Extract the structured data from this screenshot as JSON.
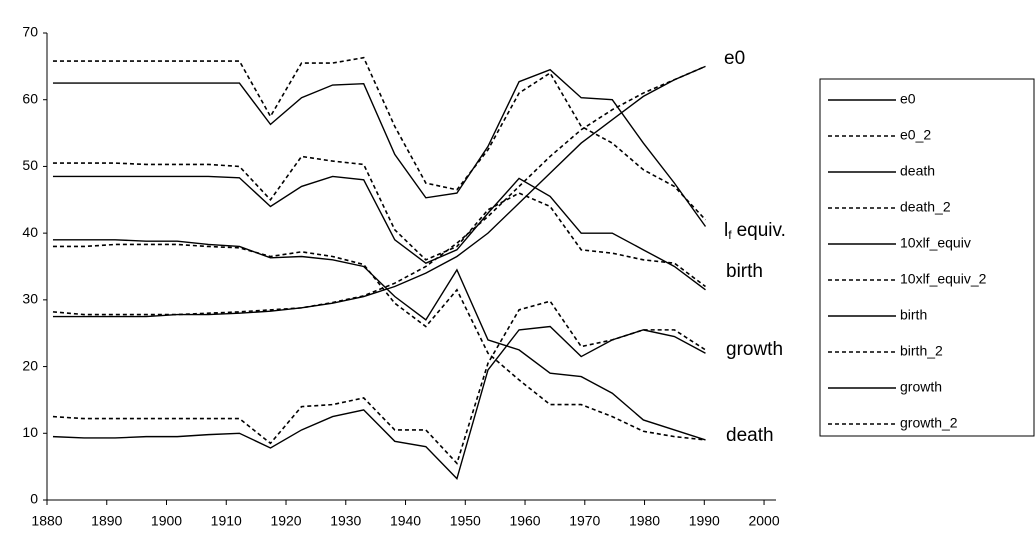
{
  "chart_data": {
    "type": "line",
    "x": [
      1881.0,
      1886.2,
      1891.4,
      1896.6,
      1901.8,
      1907.0,
      1912.2,
      1917.4,
      1922.6,
      1927.8,
      1933.0,
      1938.2,
      1943.4,
      1948.6,
      1953.8,
      1959.0,
      1964.2,
      1969.4,
      1974.6,
      1979.8,
      1985.0,
      1990.2
    ],
    "xlim": [
      1880,
      2002
    ],
    "xticks": [
      1880,
      1890,
      1900,
      1910,
      1920,
      1930,
      1940,
      1950,
      1960,
      1970,
      1980,
      1990,
      2000
    ],
    "ylim": [
      0,
      70
    ],
    "yticks": [
      0,
      10,
      20,
      30,
      40,
      50,
      60,
      70
    ],
    "grid": false,
    "legend": "right",
    "series": [
      {
        "name": "e0",
        "color": "#000000",
        "style": "solid",
        "values": [
          27.5,
          27.5,
          27.5,
          27.5,
          27.8,
          27.8,
          28.0,
          28.3,
          28.8,
          29.5,
          30.5,
          32.0,
          34.0,
          36.5,
          40.0,
          44.5,
          49.0,
          53.5,
          57.0,
          60.5,
          63.0,
          65.0
        ]
      },
      {
        "name": "e0_2",
        "color": "#000000",
        "style": "dashed",
        "values": [
          28.2,
          27.8,
          27.8,
          27.8,
          27.8,
          28.0,
          28.2,
          28.5,
          28.8,
          29.6,
          30.6,
          32.5,
          35.0,
          38.5,
          42.5,
          47.0,
          51.5,
          55.5,
          58.5,
          61.0,
          63.0,
          65.0
        ]
      },
      {
        "name": "death",
        "color": "#000000",
        "style": "solid",
        "values": [
          39.0,
          39.0,
          39.0,
          38.8,
          38.8,
          38.3,
          38.0,
          36.3,
          36.5,
          36.0,
          35.0,
          30.5,
          27.0,
          34.5,
          24.0,
          22.5,
          19.0,
          18.5,
          16.0,
          12.0,
          10.5,
          9.0
        ]
      },
      {
        "name": "death_2",
        "color": "#000000",
        "style": "dashed",
        "values": [
          38.0,
          38.0,
          38.3,
          38.3,
          38.3,
          38.0,
          37.8,
          36.5,
          37.2,
          36.5,
          35.3,
          29.5,
          26.0,
          31.5,
          22.0,
          18.0,
          14.3,
          14.3,
          12.5,
          10.3,
          9.5,
          9.0
        ]
      },
      {
        "name": "10xlf_equiv",
        "color": "#000000",
        "style": "solid",
        "values": [
          62.5,
          62.5,
          62.5,
          62.5,
          62.5,
          62.5,
          62.5,
          56.3,
          60.3,
          62.2,
          62.4,
          51.8,
          45.3,
          46.0,
          53.0,
          62.7,
          64.5,
          60.3,
          60.0,
          53.5,
          47.5,
          41.0
        ]
      },
      {
        "name": "10xlf_equiv_2",
        "color": "#000000",
        "style": "dashed",
        "values": [
          65.8,
          65.8,
          65.8,
          65.8,
          65.8,
          65.8,
          65.8,
          57.5,
          65.5,
          65.5,
          66.3,
          56.0,
          47.5,
          46.5,
          52.5,
          61.0,
          64.0,
          56.0,
          53.5,
          49.5,
          47.0,
          42.0
        ]
      },
      {
        "name": "birth",
        "color": "#000000",
        "style": "solid",
        "values": [
          48.5,
          48.5,
          48.5,
          48.5,
          48.5,
          48.5,
          48.3,
          44.0,
          47.0,
          48.5,
          48.0,
          39.0,
          35.5,
          37.5,
          43.0,
          48.2,
          45.5,
          40.0,
          40.0,
          37.5,
          35.0,
          31.5
        ]
      },
      {
        "name": "birth_2",
        "color": "#000000",
        "style": "dashed",
        "values": [
          50.5,
          50.5,
          50.5,
          50.3,
          50.3,
          50.3,
          50.0,
          45.0,
          51.5,
          50.8,
          50.3,
          40.5,
          36.0,
          38.0,
          43.5,
          46.0,
          44.0,
          37.5,
          37.0,
          36.0,
          35.5,
          32.0
        ]
      },
      {
        "name": "growth",
        "color": "#000000",
        "style": "solid",
        "values": [
          9.5,
          9.3,
          9.3,
          9.5,
          9.5,
          9.8,
          10.0,
          7.8,
          10.5,
          12.5,
          13.5,
          8.8,
          8.0,
          3.2,
          19.5,
          25.5,
          26.0,
          21.5,
          24.0,
          25.5,
          24.5,
          22.0
        ]
      },
      {
        "name": "growth_2",
        "color": "#000000",
        "style": "dashed",
        "values": [
          12.5,
          12.2,
          12.2,
          12.2,
          12.2,
          12.2,
          12.2,
          8.5,
          14.0,
          14.3,
          15.3,
          10.5,
          10.5,
          5.5,
          20.5,
          28.5,
          29.8,
          23.0,
          24.0,
          25.5,
          25.5,
          22.5
        ]
      }
    ],
    "annotations": [
      {
        "text": "e0"
      },
      {
        "text": "l",
        "subscript": "f",
        "suffix": "equiv."
      },
      {
        "text": "birth"
      },
      {
        "text": "growth"
      },
      {
        "text": "death"
      }
    ]
  }
}
